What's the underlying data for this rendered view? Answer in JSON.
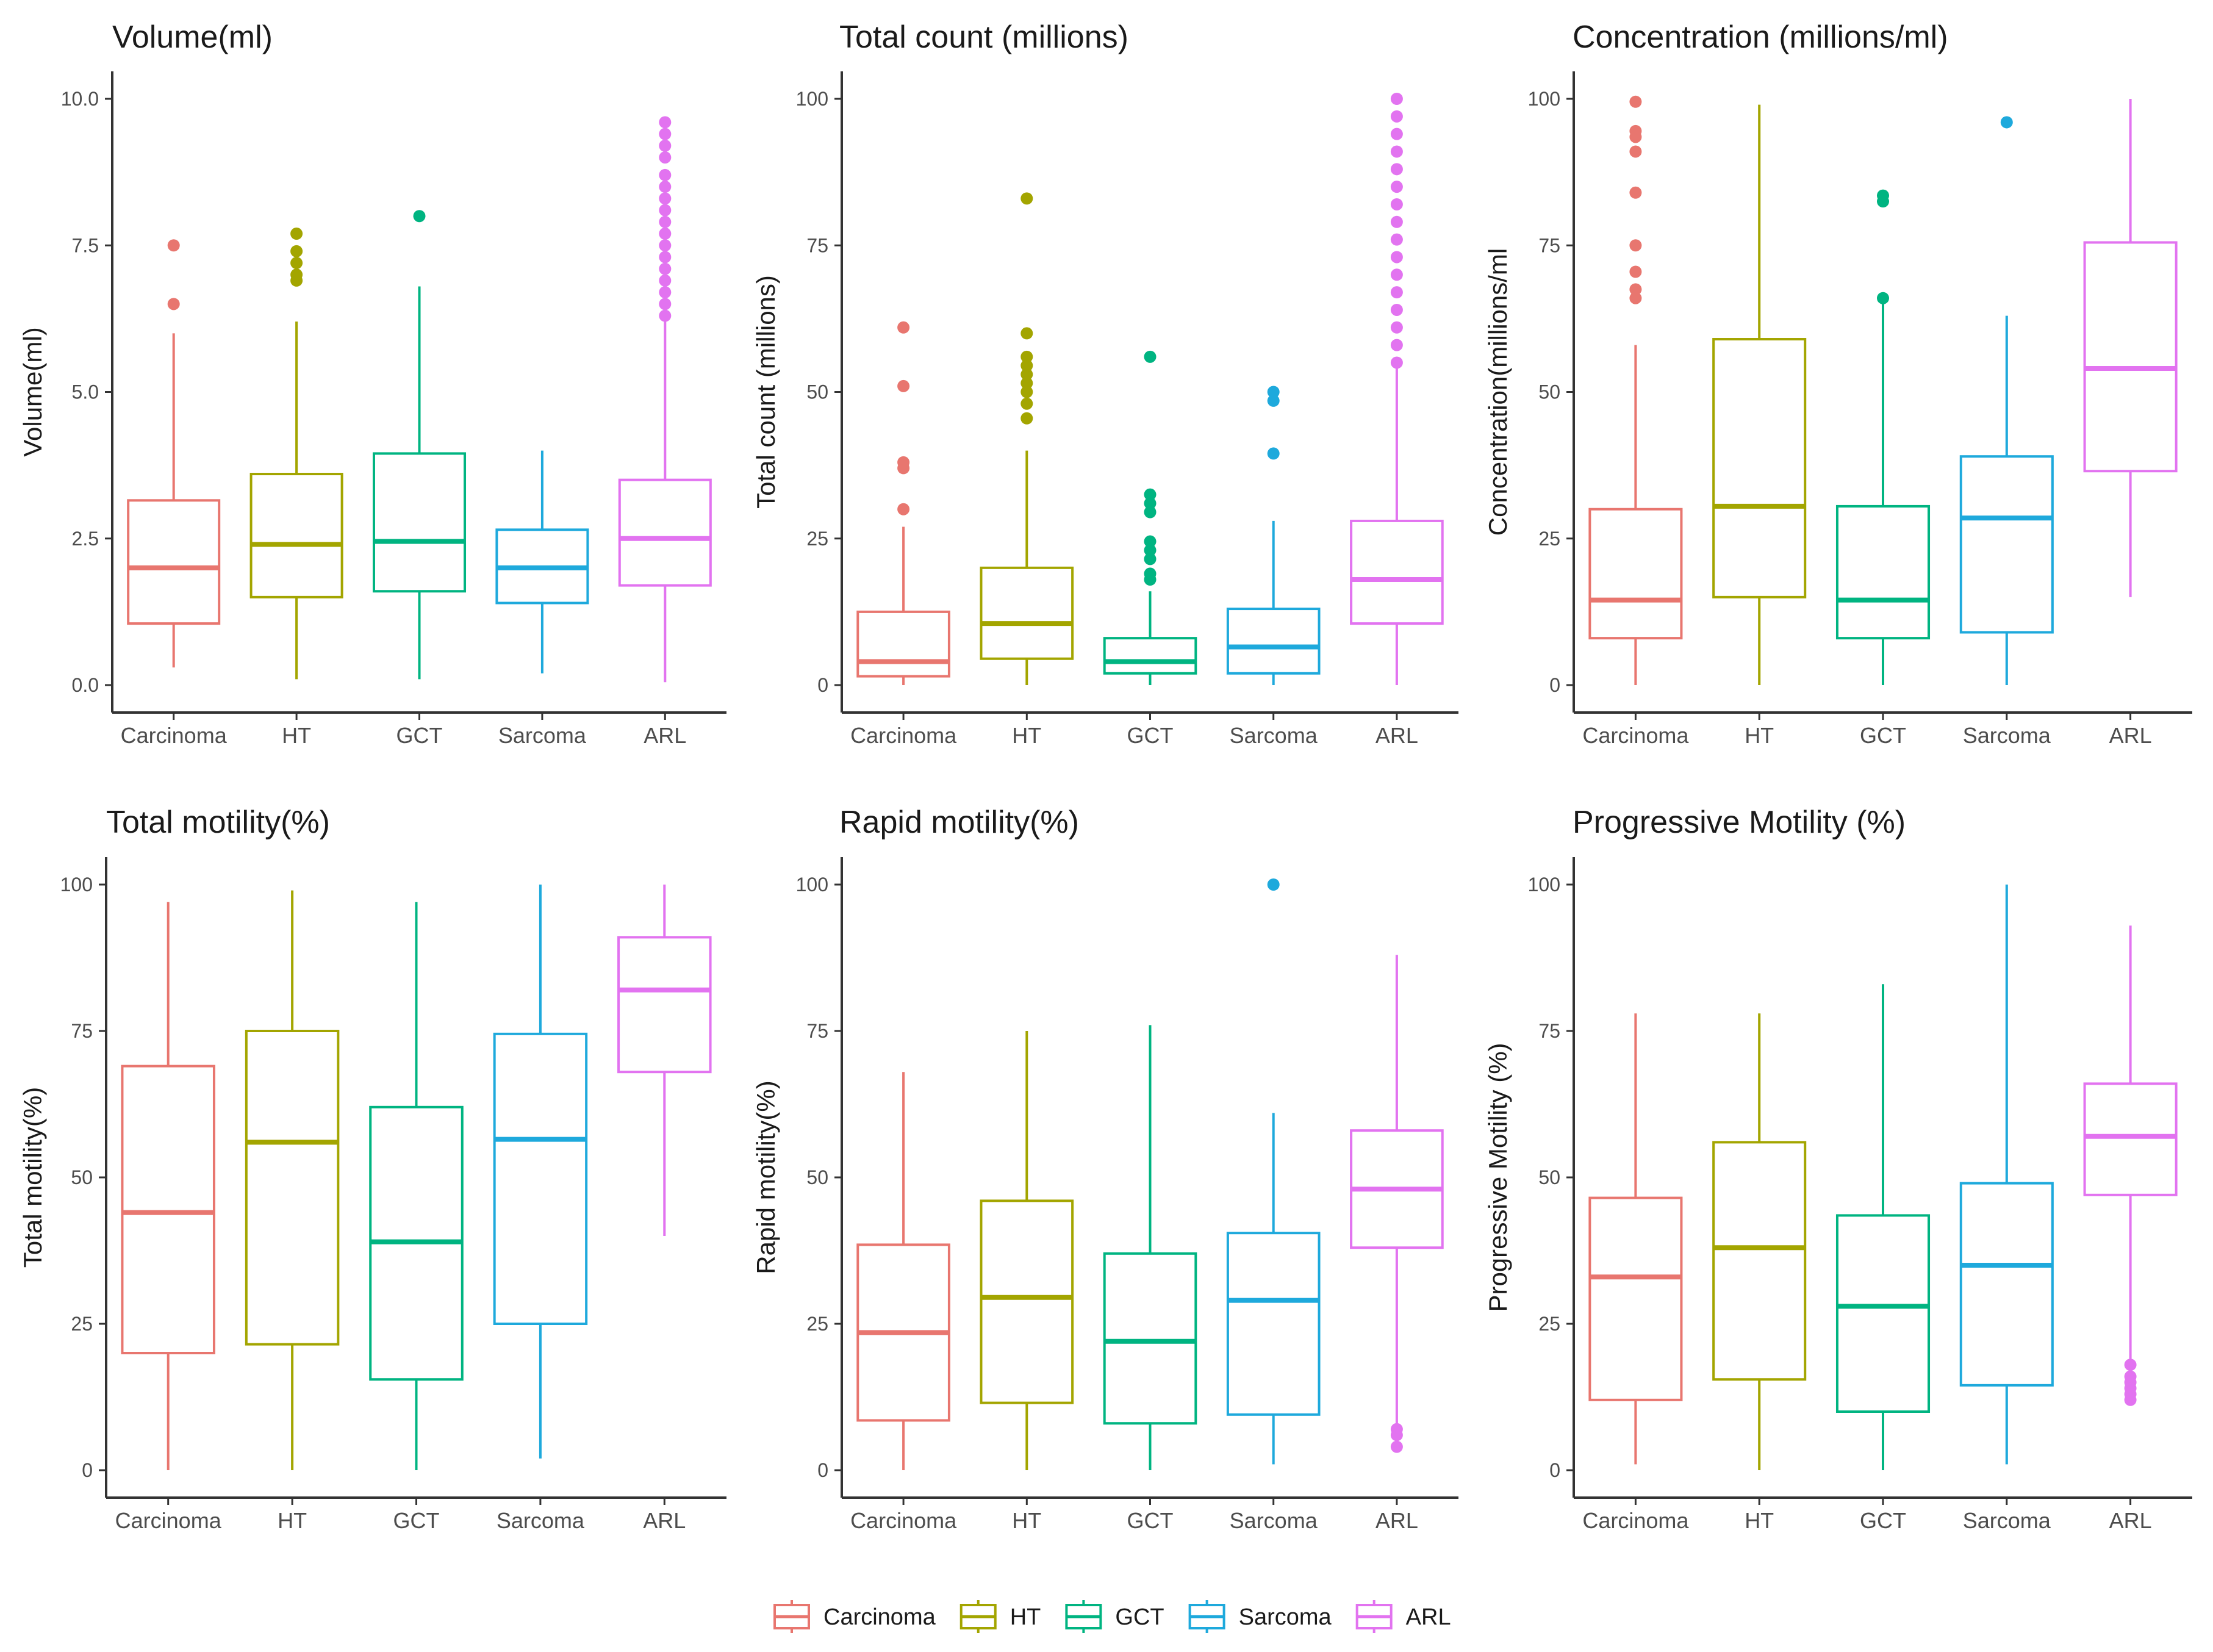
{
  "colors": {
    "Carcinoma": "#E8766F",
    "HT": "#A3A500",
    "GCT": "#00B481",
    "Sarcoma": "#1EA9DC",
    "ARL": "#E273F0"
  },
  "legend": {
    "items": [
      "Carcinoma",
      "HT",
      "GCT",
      "Sarcoma",
      "ARL"
    ]
  },
  "chart_data": [
    {
      "type": "boxplot",
      "title": "Volume(ml)",
      "ylabel": "Volume(ml)",
      "categories": [
        "Carcinoma",
        "HT",
        "GCT",
        "Sarcoma",
        "ARL"
      ],
      "ylim": [
        0,
        10
      ],
      "yticks": [
        0,
        2.5,
        5,
        7.5,
        10
      ],
      "ytick_labels": [
        "0.0",
        "2.5",
        "5.0",
        "7.5",
        "10.0"
      ],
      "boxes": [
        {
          "min": 0.3,
          "q1": 1.05,
          "median": 2.0,
          "q3": 3.15,
          "max": 6.0,
          "outliers": [
            6.5,
            7.5
          ]
        },
        {
          "min": 0.1,
          "q1": 1.5,
          "median": 2.4,
          "q3": 3.6,
          "max": 6.2,
          "outliers": [
            6.9,
            7.0,
            7.2,
            7.4,
            7.7
          ]
        },
        {
          "min": 0.1,
          "q1": 1.6,
          "median": 2.45,
          "q3": 3.95,
          "max": 6.8,
          "outliers": [
            8.0
          ]
        },
        {
          "min": 0.2,
          "q1": 1.4,
          "median": 2.0,
          "q3": 2.65,
          "max": 4.0,
          "outliers": []
        },
        {
          "min": 0.05,
          "q1": 1.7,
          "median": 2.5,
          "q3": 3.5,
          "max": 6.2,
          "outliers": [
            6.3,
            6.5,
            6.7,
            6.9,
            7.1,
            7.3,
            7.5,
            7.7,
            7.9,
            8.1,
            8.3,
            8.5,
            8.7,
            9.0,
            9.2,
            9.4,
            9.6
          ]
        }
      ]
    },
    {
      "type": "boxplot",
      "title": "Total count (millions)",
      "ylabel": "Total count (millions)",
      "categories": [
        "Carcinoma",
        "HT",
        "GCT",
        "Sarcoma",
        "ARL"
      ],
      "ylim": [
        0,
        100
      ],
      "yticks": [
        0,
        25,
        50,
        75,
        100
      ],
      "ytick_labels": [
        "0",
        "25",
        "50",
        "75",
        "100"
      ],
      "boxes": [
        {
          "min": 0,
          "q1": 1.5,
          "median": 4,
          "q3": 12.5,
          "max": 27,
          "outliers": [
            30,
            37,
            38,
            51,
            61
          ]
        },
        {
          "min": 0,
          "q1": 4.5,
          "median": 10.5,
          "q3": 20,
          "max": 40,
          "outliers": [
            45.5,
            48,
            50,
            51.5,
            53,
            54.5,
            56,
            60,
            83
          ]
        },
        {
          "min": 0,
          "q1": 2,
          "median": 4,
          "q3": 8,
          "max": 16,
          "outliers": [
            18,
            19,
            21.5,
            23,
            24.5,
            29.5,
            31,
            32.5,
            56
          ]
        },
        {
          "min": 0,
          "q1": 2,
          "median": 6.5,
          "q3": 13,
          "max": 28,
          "outliers": [
            39.5,
            48.5,
            50
          ]
        },
        {
          "min": 0,
          "q1": 10.5,
          "median": 18,
          "q3": 28,
          "max": 54,
          "outliers": [
            55,
            58,
            61,
            64,
            67,
            70,
            73,
            76,
            79,
            82,
            85,
            88,
            91,
            94,
            97,
            100
          ]
        }
      ]
    },
    {
      "type": "boxplot",
      "title": "Concentration (millions/ml)",
      "ylabel": "Concentration(millions/ml",
      "categories": [
        "Carcinoma",
        "HT",
        "GCT",
        "Sarcoma",
        "ARL"
      ],
      "ylim": [
        0,
        100
      ],
      "yticks": [
        0,
        25,
        50,
        75,
        100
      ],
      "ytick_labels": [
        "0",
        "25",
        "50",
        "75",
        "100"
      ],
      "boxes": [
        {
          "min": 0,
          "q1": 8,
          "median": 14.5,
          "q3": 30,
          "max": 58,
          "outliers": [
            66,
            67.5,
            70.5,
            75,
            84,
            91,
            93.5,
            94.5,
            99.5
          ]
        },
        {
          "min": 0,
          "q1": 15,
          "median": 30.5,
          "q3": 59,
          "max": 99,
          "outliers": []
        },
        {
          "min": 0,
          "q1": 8,
          "median": 14.5,
          "q3": 30.5,
          "max": 65,
          "outliers": [
            66,
            82.5,
            83.5
          ]
        },
        {
          "min": 0,
          "q1": 9,
          "median": 28.5,
          "q3": 39,
          "max": 63,
          "outliers": [
            96
          ]
        },
        {
          "min": 15,
          "q1": 36.5,
          "median": 54,
          "q3": 75.5,
          "max": 100,
          "outliers": []
        }
      ]
    },
    {
      "type": "boxplot",
      "title": "Total motility(%)",
      "ylabel": "Total motility(%)",
      "categories": [
        "Carcinoma",
        "HT",
        "GCT",
        "Sarcoma",
        "ARL"
      ],
      "ylim": [
        0,
        100
      ],
      "yticks": [
        0,
        25,
        50,
        75,
        100
      ],
      "ytick_labels": [
        "0",
        "25",
        "50",
        "75",
        "100"
      ],
      "boxes": [
        {
          "min": 0,
          "q1": 20,
          "median": 44,
          "q3": 69,
          "max": 97,
          "outliers": []
        },
        {
          "min": 0,
          "q1": 21.5,
          "median": 56,
          "q3": 75,
          "max": 99,
          "outliers": []
        },
        {
          "min": 0,
          "q1": 15.5,
          "median": 39,
          "q3": 62,
          "max": 97,
          "outliers": []
        },
        {
          "min": 2,
          "q1": 25,
          "median": 56.5,
          "q3": 74.5,
          "max": 100,
          "outliers": []
        },
        {
          "min": 40,
          "q1": 68,
          "median": 82,
          "q3": 91,
          "max": 100,
          "outliers": []
        }
      ]
    },
    {
      "type": "boxplot",
      "title": "Rapid motility(%)",
      "ylabel": "Rapid motility(%)",
      "categories": [
        "Carcinoma",
        "HT",
        "GCT",
        "Sarcoma",
        "ARL"
      ],
      "ylim": [
        0,
        100
      ],
      "yticks": [
        0,
        25,
        50,
        75,
        100
      ],
      "ytick_labels": [
        "0",
        "25",
        "50",
        "75",
        "100"
      ],
      "boxes": [
        {
          "min": 0,
          "q1": 8.5,
          "median": 23.5,
          "q3": 38.5,
          "max": 68,
          "outliers": []
        },
        {
          "min": 0,
          "q1": 11.5,
          "median": 29.5,
          "q3": 46,
          "max": 75,
          "outliers": []
        },
        {
          "min": 0,
          "q1": 8,
          "median": 22,
          "q3": 37,
          "max": 76,
          "outliers": []
        },
        {
          "min": 1,
          "q1": 9.5,
          "median": 29,
          "q3": 40.5,
          "max": 61,
          "outliers": [
            100
          ]
        },
        {
          "min": 8,
          "q1": 38,
          "median": 48,
          "q3": 58,
          "max": 88,
          "outliers": [
            4,
            6,
            7
          ]
        }
      ]
    },
    {
      "type": "boxplot",
      "title": "Progressive Motility (%)",
      "ylabel": "Progressive Motility (%)",
      "categories": [
        "Carcinoma",
        "HT",
        "GCT",
        "Sarcoma",
        "ARL"
      ],
      "ylim": [
        0,
        100
      ],
      "yticks": [
        0,
        25,
        50,
        75,
        100
      ],
      "ytick_labels": [
        "0",
        "25",
        "50",
        "75",
        "100"
      ],
      "boxes": [
        {
          "min": 1,
          "q1": 12,
          "median": 33,
          "q3": 46.5,
          "max": 78,
          "outliers": []
        },
        {
          "min": 0,
          "q1": 15.5,
          "median": 38,
          "q3": 56,
          "max": 78,
          "outliers": []
        },
        {
          "min": 0,
          "q1": 10,
          "median": 28,
          "q3": 43.5,
          "max": 83,
          "outliers": []
        },
        {
          "min": 1,
          "q1": 14.5,
          "median": 35,
          "q3": 49,
          "max": 100,
          "outliers": []
        },
        {
          "min": 19,
          "q1": 47,
          "median": 57,
          "q3": 66,
          "max": 93,
          "outliers": [
            12,
            13,
            14,
            15,
            16,
            18
          ]
        }
      ]
    }
  ]
}
